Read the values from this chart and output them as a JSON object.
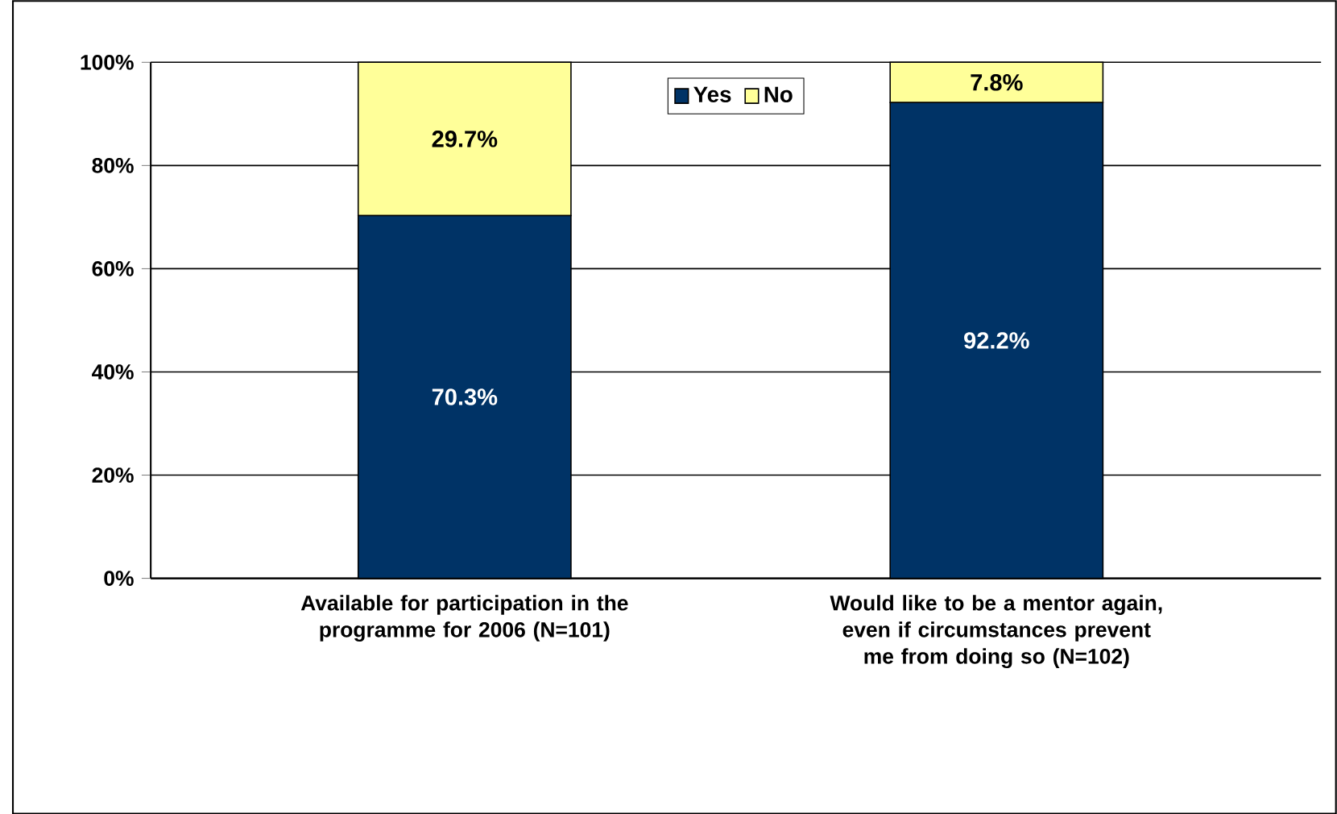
{
  "chart_data": {
    "type": "bar",
    "stacked": true,
    "categories": [
      "Available for participation in the programme for 2006 (N=101)",
      "Would like to be a mentor again, even if circumstances prevent me from doing so (N=102)"
    ],
    "series": [
      {
        "name": "Yes",
        "color": "#003366",
        "values": [
          70.3,
          92.2
        ],
        "value_labels": [
          "70.3%",
          "92.2%"
        ]
      },
      {
        "name": "No",
        "color": "#ffff99",
        "values": [
          29.7,
          7.8
        ],
        "value_labels": [
          "29.7%",
          "7.8%"
        ]
      }
    ],
    "ylim": [
      0,
      100
    ],
    "yticks": [
      {
        "value": 0,
        "label": "0%"
      },
      {
        "value": 20,
        "label": "20%"
      },
      {
        "value": 40,
        "label": "40%"
      },
      {
        "value": 60,
        "label": "60%"
      },
      {
        "value": 80,
        "label": "80%"
      },
      {
        "value": 100,
        "label": "100%"
      }
    ],
    "grid": "y",
    "legend": "top"
  }
}
